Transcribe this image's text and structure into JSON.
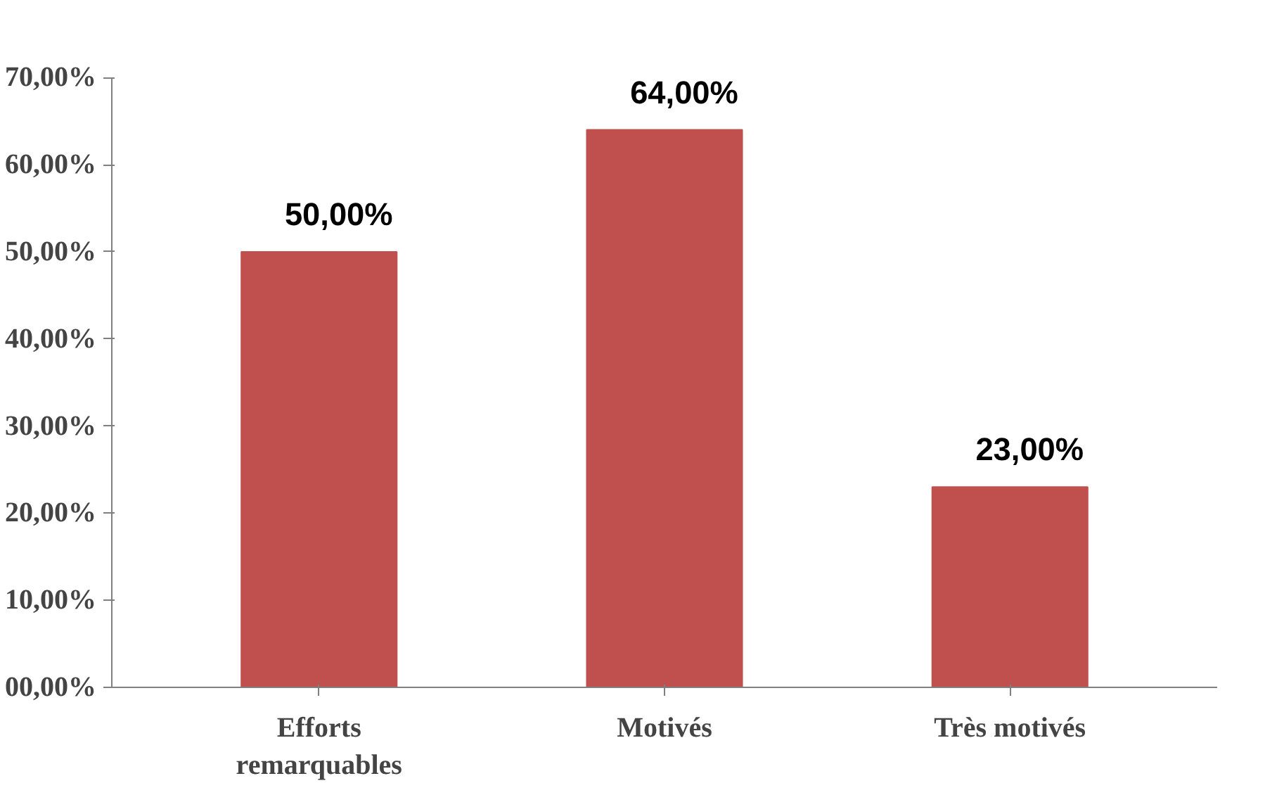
{
  "chart_data": {
    "type": "bar",
    "categories": [
      "Efforts\nremarquables",
      "Motivés",
      "Très motivés"
    ],
    "values": [
      50,
      64,
      23
    ],
    "color": "#c0504d",
    "value_labels": [
      "50,00%",
      "64,00%",
      "23,00%"
    ],
    "ylim": [
      0,
      70
    ],
    "yticks": [
      {
        "value": 0,
        "label": "00,00%"
      },
      {
        "value": 10,
        "label": "10,00%"
      },
      {
        "value": 20,
        "label": "20,00%"
      },
      {
        "value": 30,
        "label": "30,00%"
      },
      {
        "value": 40,
        "label": "40,00%"
      },
      {
        "value": 50,
        "label": "50,00%"
      },
      {
        "value": 60,
        "label": "60,00%"
      },
      {
        "value": 70,
        "label": "70,00%"
      }
    ],
    "grid": false
  }
}
